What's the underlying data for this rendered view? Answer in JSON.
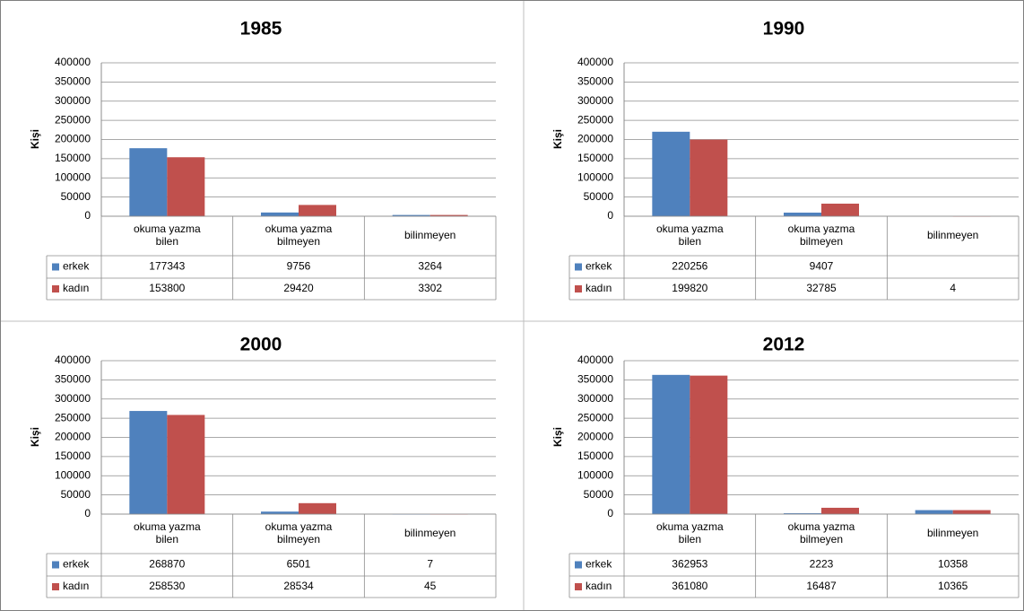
{
  "chart_data": [
    {
      "type": "bar",
      "title": "1985",
      "y_label": "Kişi",
      "categories": [
        "okuma yazma bilen",
        "okuma yazma bilmeyen",
        "bilinmeyen"
      ],
      "series": [
        {
          "name": "erkek",
          "color": "#4f81bd",
          "values": [
            177343,
            9756,
            3264
          ]
        },
        {
          "name": "kadın",
          "color": "#c0504d",
          "values": [
            153800,
            29420,
            3302
          ]
        }
      ],
      "ylim": [
        0,
        400000
      ],
      "yticks": [
        0,
        50000,
        100000,
        150000,
        200000,
        250000,
        300000,
        350000,
        400000
      ],
      "grid": true
    },
    {
      "type": "bar",
      "title": "1990",
      "y_label": "Kişi",
      "categories": [
        "okuma yazma bilen",
        "okuma yazma bilmeyen",
        "bilinmeyen"
      ],
      "series": [
        {
          "name": "erkek",
          "color": "#4f81bd",
          "values": [
            220256,
            9407,
            null
          ]
        },
        {
          "name": "kadın",
          "color": "#c0504d",
          "values": [
            199820,
            32785,
            4
          ]
        }
      ],
      "ylim": [
        0,
        400000
      ],
      "yticks": [
        0,
        50000,
        100000,
        150000,
        200000,
        250000,
        300000,
        350000,
        400000
      ],
      "grid": true
    },
    {
      "type": "bar",
      "title": "2000",
      "y_label": "Kişi",
      "categories": [
        "okuma yazma bilen",
        "okuma yazma bilmeyen",
        "bilinmeyen"
      ],
      "series": [
        {
          "name": "erkek",
          "color": "#4f81bd",
          "values": [
            268870,
            6501,
            7
          ]
        },
        {
          "name": "kadın",
          "color": "#c0504d",
          "values": [
            258530,
            28534,
            45
          ]
        }
      ],
      "ylim": [
        0,
        400000
      ],
      "yticks": [
        0,
        50000,
        100000,
        150000,
        200000,
        250000,
        300000,
        350000,
        400000
      ],
      "grid": true
    },
    {
      "type": "bar",
      "title": "2012",
      "y_label": "Kişi",
      "categories": [
        "okuma yazma bilen",
        "okuma yazma bilmeyen",
        "bilinmeyen"
      ],
      "series": [
        {
          "name": "erkek",
          "color": "#4f81bd",
          "values": [
            362953,
            2223,
            10358
          ]
        },
        {
          "name": "kadın",
          "color": "#c0504d",
          "values": [
            361080,
            16487,
            10365
          ]
        }
      ],
      "ylim": [
        0,
        400000
      ],
      "yticks": [
        0,
        50000,
        100000,
        150000,
        200000,
        250000,
        300000,
        350000,
        400000
      ],
      "grid": true
    }
  ]
}
